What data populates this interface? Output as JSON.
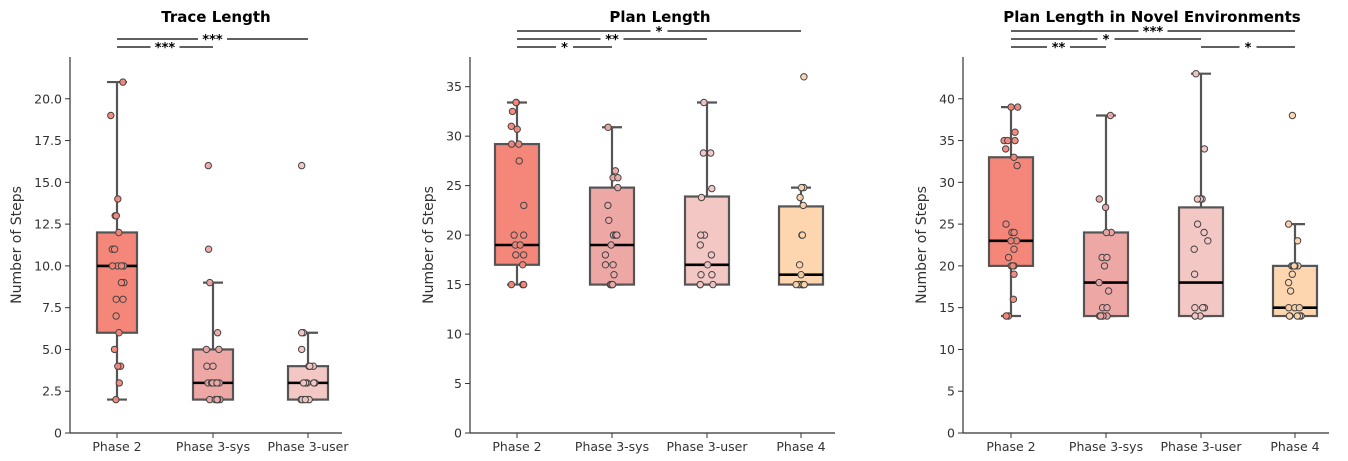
{
  "chart_data": [
    {
      "type": "box",
      "title": "Trace Length",
      "ylabel": "Number of Steps",
      "ylim": [
        0,
        22.5
      ],
      "yticks": [
        0,
        2.5,
        5.0,
        7.5,
        10.0,
        12.5,
        15.0,
        17.5,
        20.0
      ],
      "ytick_labels": [
        "0",
        "2.5",
        "5.0",
        "7.5",
        "10.0",
        "12.5",
        "15.0",
        "17.5",
        "20.0"
      ],
      "categories": [
        "Phase 2",
        "Phase 3-sys",
        "Phase 3-user"
      ],
      "colors": [
        "#f4877a",
        "#eda8a6",
        "#f3c7c4"
      ],
      "boxes": [
        {
          "whislo": 2,
          "q1": 6,
          "med": 10,
          "q3": 12,
          "whishi": 21,
          "points": [
            21,
            19,
            14,
            13,
            13,
            12,
            11,
            11,
            10,
            10,
            10,
            10,
            9,
            9,
            8,
            8,
            7,
            6,
            5,
            4,
            4,
            3,
            2
          ]
        },
        {
          "whislo": 2,
          "q1": 2,
          "med": 3,
          "q3": 5,
          "whishi": 9,
          "points": [
            16,
            11,
            9,
            6,
            5,
            5,
            4,
            4,
            3,
            3,
            3,
            3,
            3,
            3,
            2,
            2,
            2,
            2,
            2,
            2
          ]
        },
        {
          "whislo": 2,
          "q1": 2,
          "med": 3,
          "q3": 4,
          "whishi": 6,
          "points": [
            16,
            6,
            6,
            5,
            4,
            4,
            4,
            3,
            3,
            3,
            3,
            3,
            2,
            2,
            2,
            2,
            2,
            2
          ]
        }
      ],
      "comparisons": [
        {
          "from": 0,
          "to": 1,
          "label": "***",
          "level": 0
        },
        {
          "from": 0,
          "to": 2,
          "label": "***",
          "level": 1
        }
      ]
    },
    {
      "type": "box",
      "title": "Plan Length",
      "ylabel": "Number of Steps",
      "ylim": [
        0,
        38
      ],
      "yticks": [
        0,
        5,
        10,
        15,
        20,
        25,
        30,
        35
      ],
      "ytick_labels": [
        "0",
        "5",
        "10",
        "15",
        "20",
        "25",
        "30",
        "35"
      ],
      "categories": [
        "Phase 2",
        "Phase 3-sys",
        "Phase 3-user",
        "Phase 4"
      ],
      "colors": [
        "#f4877a",
        "#eda8a6",
        "#f3c7c4",
        "#fdd5ae"
      ],
      "boxes": [
        {
          "whislo": 15,
          "q1": 17,
          "med": 19,
          "q3": 29.2,
          "whishi": 33.4,
          "points": [
            33.4,
            33.4,
            32.5,
            31,
            30.7,
            29.2,
            29.2,
            27.5,
            23,
            20,
            20,
            19,
            19,
            18,
            18,
            17,
            15,
            15,
            15
          ]
        },
        {
          "whislo": 15,
          "q1": 15,
          "med": 19,
          "q3": 24.8,
          "whishi": 30.9,
          "points": [
            30.9,
            26.5,
            25.8,
            25.8,
            24.8,
            23,
            21.5,
            20,
            20,
            20,
            19,
            18,
            17,
            17,
            16,
            15,
            15,
            15,
            15
          ]
        },
        {
          "whislo": 15,
          "q1": 15,
          "med": 17,
          "q3": 23.9,
          "whishi": 33.4,
          "points": [
            33.4,
            28.3,
            28.3,
            24.7,
            23.8,
            20,
            20,
            19,
            18,
            17,
            16,
            16,
            15,
            15,
            15
          ]
        },
        {
          "whislo": 15,
          "q1": 15,
          "med": 16,
          "q3": 22.9,
          "whishi": 24.8,
          "points": [
            36,
            24.8,
            24.8,
            23.8,
            23,
            20,
            20,
            17,
            16,
            15,
            15,
            15,
            15,
            15,
            15,
            15
          ]
        }
      ],
      "comparisons": [
        {
          "from": 0,
          "to": 1,
          "label": "*",
          "level": 0
        },
        {
          "from": 0,
          "to": 2,
          "label": "**",
          "level": 1
        },
        {
          "from": 0,
          "to": 3,
          "label": "*",
          "level": 2
        }
      ]
    },
    {
      "type": "box",
      "title": "Plan Length in Novel Environments",
      "ylabel": "Number of Steps",
      "ylim": [
        0,
        45
      ],
      "yticks": [
        0,
        5,
        10,
        15,
        20,
        25,
        30,
        35,
        40
      ],
      "ytick_labels": [
        "0",
        "5",
        "10",
        "15",
        "20",
        "25",
        "30",
        "35",
        "40"
      ],
      "categories": [
        "Phase 2",
        "Phase 3-sys",
        "Phase 3-user",
        "Phase 4"
      ],
      "colors": [
        "#f4877a",
        "#eda8a6",
        "#f3c7c4",
        "#fdd5ae"
      ],
      "boxes": [
        {
          "whislo": 14,
          "q1": 20,
          "med": 23,
          "q3": 33,
          "whishi": 39,
          "points": [
            39,
            39,
            36,
            35,
            35,
            35,
            34,
            33,
            32,
            25,
            24,
            24,
            23,
            23,
            22,
            21,
            20,
            20,
            20,
            19,
            16,
            14,
            14
          ]
        },
        {
          "whislo": 14,
          "q1": 14,
          "med": 18,
          "q3": 24,
          "whishi": 38,
          "points": [
            38,
            28,
            27,
            24,
            24,
            21,
            21,
            20,
            18,
            17,
            15,
            15,
            14,
            14,
            14,
            14,
            14
          ]
        },
        {
          "whislo": 14,
          "q1": 14,
          "med": 18,
          "q3": 27,
          "whishi": 43,
          "points": [
            43,
            34,
            28,
            28,
            28,
            25,
            24,
            23,
            22,
            19,
            15,
            15,
            15,
            14,
            14,
            14
          ]
        },
        {
          "whislo": 14,
          "q1": 14,
          "med": 15,
          "q3": 20,
          "whishi": 25,
          "points": [
            38,
            25,
            23,
            20,
            20,
            20,
            20,
            20,
            19,
            18,
            17,
            15,
            15,
            15,
            14,
            14,
            14,
            14,
            14
          ]
        }
      ],
      "comparisons": [
        {
          "from": 0,
          "to": 1,
          "label": "**",
          "level": 0
        },
        {
          "from": 2,
          "to": 3,
          "label": "*",
          "level": 0
        },
        {
          "from": 0,
          "to": 2,
          "label": "*",
          "level": 1
        },
        {
          "from": 0,
          "to": 3,
          "label": "***",
          "level": 2
        }
      ]
    }
  ]
}
